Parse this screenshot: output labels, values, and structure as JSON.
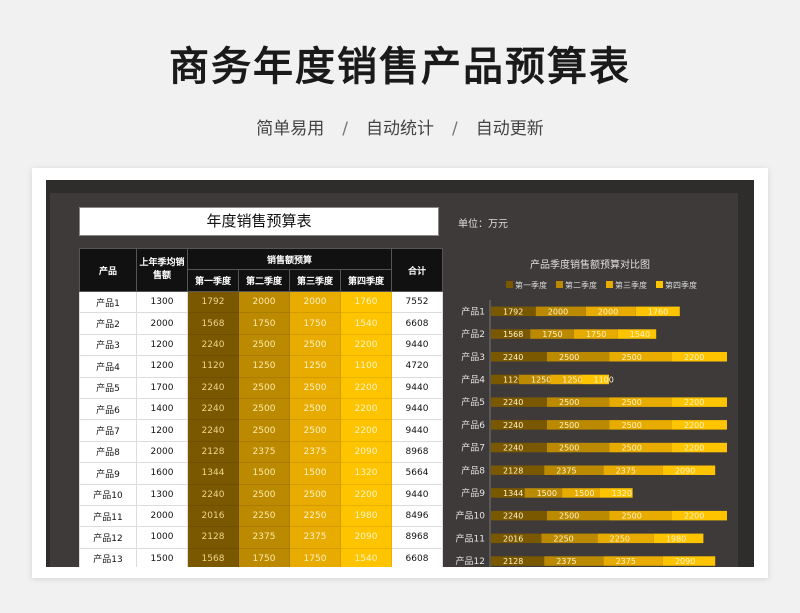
{
  "header": {
    "title": "商务年度销售产品预算表",
    "tags": [
      "简单易用",
      "自动统计",
      "自动更新"
    ],
    "separator": "/"
  },
  "sheet": {
    "table_title": "年度销售预算表",
    "unit": "单位：万元",
    "headers": {
      "product": "产品",
      "avg": "上年季均销售额",
      "group": "销售额预算",
      "quarters": [
        "第一季度",
        "第二季度",
        "第三季度",
        "第四季度"
      ],
      "total": "合计"
    },
    "rows": [
      {
        "product": "产品1",
        "avg": "1300",
        "q": [
          "1792",
          "2000",
          "2000",
          "1760"
        ],
        "total": "7552"
      },
      {
        "product": "产品2",
        "avg": "2000",
        "q": [
          "1568",
          "1750",
          "1750",
          "1540"
        ],
        "total": "6608"
      },
      {
        "product": "产品3",
        "avg": "1200",
        "q": [
          "2240",
          "2500",
          "2500",
          "2200"
        ],
        "total": "9440"
      },
      {
        "product": "产品4",
        "avg": "1200",
        "q": [
          "1120",
          "1250",
          "1250",
          "1100"
        ],
        "total": "4720"
      },
      {
        "product": "产品5",
        "avg": "1700",
        "q": [
          "2240",
          "2500",
          "2500",
          "2200"
        ],
        "total": "9440"
      },
      {
        "product": "产品6",
        "avg": "1400",
        "q": [
          "2240",
          "2500",
          "2500",
          "2200"
        ],
        "total": "9440"
      },
      {
        "product": "产品7",
        "avg": "1200",
        "q": [
          "2240",
          "2500",
          "2500",
          "2200"
        ],
        "total": "9440"
      },
      {
        "product": "产品8",
        "avg": "2000",
        "q": [
          "2128",
          "2375",
          "2375",
          "2090"
        ],
        "total": "8968"
      },
      {
        "product": "产品9",
        "avg": "1600",
        "q": [
          "1344",
          "1500",
          "1500",
          "1320"
        ],
        "total": "5664"
      },
      {
        "product": "产品10",
        "avg": "1300",
        "q": [
          "2240",
          "2500",
          "2500",
          "2200"
        ],
        "total": "9440"
      },
      {
        "product": "产品11",
        "avg": "2000",
        "q": [
          "2016",
          "2250",
          "2250",
          "1980"
        ],
        "total": "8496"
      },
      {
        "product": "产品12",
        "avg": "1000",
        "q": [
          "2128",
          "2375",
          "2375",
          "2090"
        ],
        "total": "8968"
      },
      {
        "product": "产品13",
        "avg": "1500",
        "q": [
          "1568",
          "1750",
          "1750",
          "1540"
        ],
        "total": "6608"
      }
    ]
  },
  "chart_data": {
    "type": "bar",
    "orientation": "horizontal",
    "stacked": true,
    "title": "产品季度销售额预算对比图",
    "legend_position": "top",
    "categories": [
      "产品1",
      "产品2",
      "产品3",
      "产品4",
      "产品5",
      "产品6",
      "产品7",
      "产品8",
      "产品9",
      "产品10",
      "产品11",
      "产品12"
    ],
    "series": [
      {
        "name": "第一季度",
        "color": "#7a5800",
        "values": [
          1792,
          1568,
          2240,
          1120,
          2240,
          2240,
          2240,
          2128,
          1344,
          2240,
          2016,
          2128
        ]
      },
      {
        "name": "第二季度",
        "color": "#bb8a00",
        "values": [
          2000,
          1750,
          2500,
          1250,
          2500,
          2500,
          2500,
          2375,
          1500,
          2500,
          2250,
          2375
        ]
      },
      {
        "name": "第三季度",
        "color": "#e8ab00",
        "values": [
          2000,
          1750,
          2500,
          1250,
          2500,
          2500,
          2500,
          2375,
          1500,
          2500,
          2250,
          2375
        ]
      },
      {
        "name": "第四季度",
        "color": "#ffc400",
        "values": [
          1760,
          1540,
          2200,
          1100,
          2200,
          2200,
          2200,
          2090,
          1320,
          2200,
          1980,
          2090
        ]
      }
    ],
    "grid": false
  }
}
